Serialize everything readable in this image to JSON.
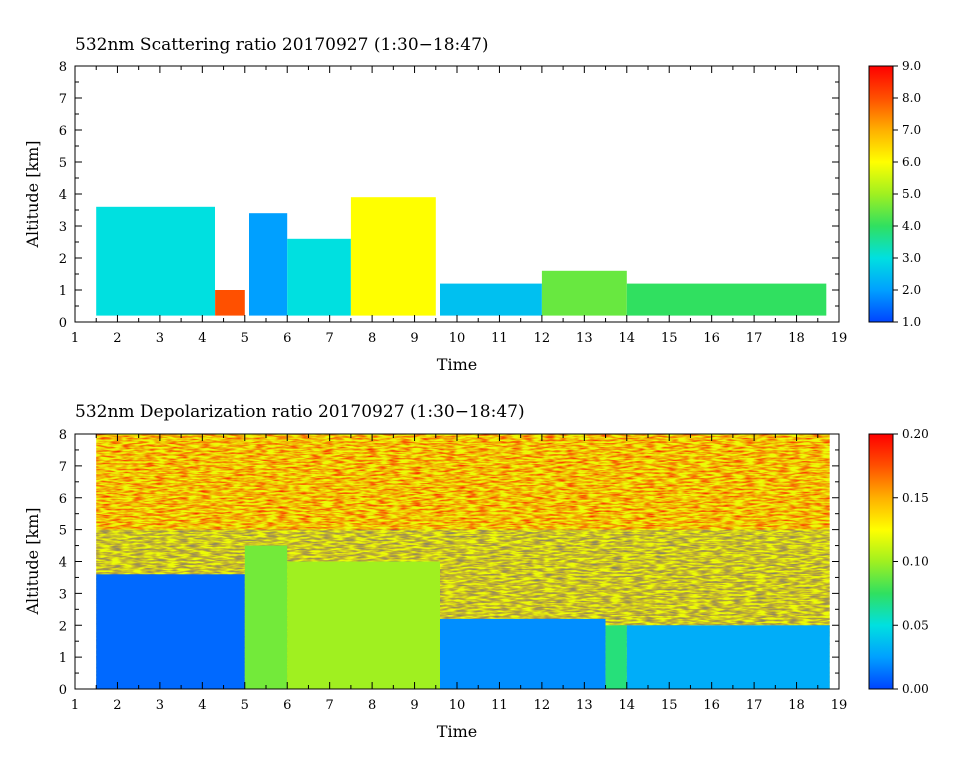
{
  "chart_data": [
    {
      "type": "heatmap",
      "title": "532nm Scattering ratio  20170927 (1:30−18:47)",
      "xlabel": "Time",
      "ylabel": "Altitude [km]",
      "xlim": [
        1,
        19
      ],
      "ylim": [
        0,
        8
      ],
      "x_ticks": [
        "1",
        "2",
        "3",
        "4",
        "5",
        "6",
        "7",
        "8",
        "9",
        "10",
        "11",
        "12",
        "13",
        "14",
        "15",
        "16",
        "17",
        "18",
        "19"
      ],
      "y_ticks": [
        "0",
        "1",
        "2",
        "3",
        "4",
        "5",
        "6",
        "7",
        "8"
      ],
      "colorbar": {
        "range": [
          1.0,
          9.0
        ],
        "ticks": [
          "1.0",
          "2.0",
          "3.0",
          "4.0",
          "5.0",
          "6.0",
          "7.0",
          "8.0",
          "9.0"
        ],
        "colors": [
          "#0044ff",
          "#00a0ff",
          "#00e0e0",
          "#30e060",
          "#a0f020",
          "#ffff00",
          "#ffb000",
          "#ff5000",
          "#ff0000"
        ]
      },
      "data_time_range": [
        1.5,
        18.78
      ],
      "features": [
        {
          "from": 1.5,
          "to": 4.3,
          "base": 0.2,
          "top": 3.6,
          "level": 3.0
        },
        {
          "from": 4.3,
          "to": 5.0,
          "base": 0.2,
          "top": 1.0,
          "level": 8.0
        },
        {
          "from": 5.1,
          "to": 6.0,
          "base": 0.2,
          "top": 3.4,
          "level": 2.0
        },
        {
          "from": 6.0,
          "to": 7.5,
          "base": 0.2,
          "top": 2.6,
          "level": 3.0
        },
        {
          "from": 7.5,
          "to": 9.5,
          "base": 0.2,
          "top": 3.9,
          "level": 6.0
        },
        {
          "from": 9.6,
          "to": 12.0,
          "base": 0.2,
          "top": 1.2,
          "level": 2.5
        },
        {
          "from": 12.0,
          "to": 14.0,
          "base": 0.2,
          "top": 1.6,
          "level": 4.5
        },
        {
          "from": 14.0,
          "to": 18.7,
          "base": 0.2,
          "top": 1.2,
          "level": 4.0
        }
      ]
    },
    {
      "type": "heatmap",
      "title": "532nm Depolarization ratio  20170927 (1:30−18:47)",
      "xlabel": "Time",
      "ylabel": "Altitude [km]",
      "xlim": [
        1,
        19
      ],
      "ylim": [
        0,
        8
      ],
      "x_ticks": [
        "1",
        "2",
        "3",
        "4",
        "5",
        "6",
        "7",
        "8",
        "9",
        "10",
        "11",
        "12",
        "13",
        "14",
        "15",
        "16",
        "17",
        "18",
        "19"
      ],
      "y_ticks": [
        "0",
        "1",
        "2",
        "3",
        "4",
        "5",
        "6",
        "7",
        "8"
      ],
      "colorbar": {
        "range": [
          0.0,
          0.2
        ],
        "ticks": [
          "0.00",
          "0.05",
          "0.10",
          "0.15",
          "0.20"
        ],
        "colors": [
          "#0044ff",
          "#00a0ff",
          "#00e0e0",
          "#30e060",
          "#a0f020",
          "#ffff00",
          "#ffb000",
          "#ff5000",
          "#ff0000"
        ]
      },
      "data_time_range": [
        1.5,
        18.78
      ],
      "features": [
        {
          "from": 1.5,
          "to": 5.0,
          "base": 0.0,
          "top": 3.6,
          "level": 0.01
        },
        {
          "from": 5.0,
          "to": 6.0,
          "base": 0.0,
          "top": 4.5,
          "level": 0.09
        },
        {
          "from": 6.0,
          "to": 9.6,
          "base": 0.0,
          "top": 4.0,
          "level": 0.1
        },
        {
          "from": 9.6,
          "to": 13.5,
          "base": 0.0,
          "top": 2.2,
          "level": 0.02
        },
        {
          "from": 13.5,
          "to": 14.0,
          "base": 0.0,
          "top": 2.0,
          "level": 0.07
        },
        {
          "from": 14.0,
          "to": 18.78,
          "base": 0.0,
          "top": 2.0,
          "level": 0.03
        }
      ]
    }
  ]
}
